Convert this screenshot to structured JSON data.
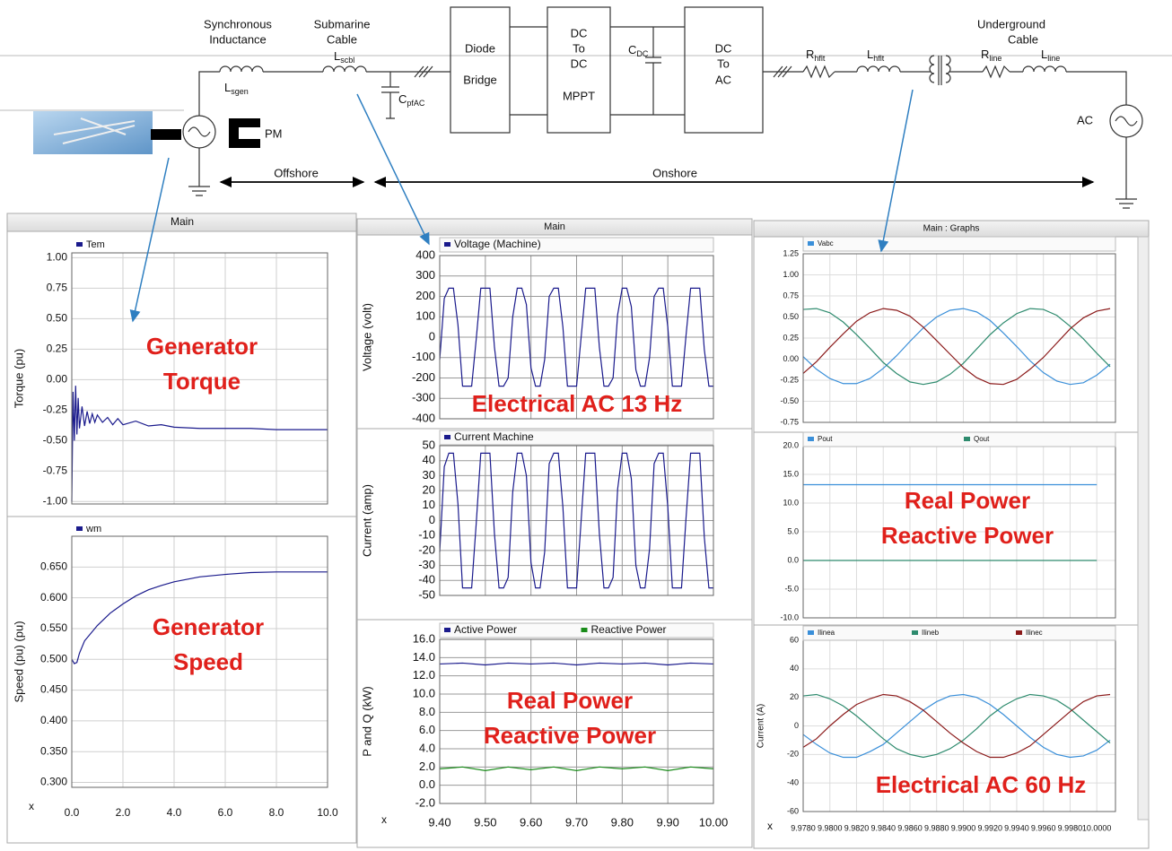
{
  "diagram": {
    "synchronous_inductance": [
      "Synchronous",
      "Inductance"
    ],
    "submarine_cable": [
      "Submarine",
      "Cable"
    ],
    "underground_cable": [
      "Underground",
      "Cable"
    ],
    "l_sgen": {
      "symbol": "L",
      "sub": "sgen"
    },
    "l_scbl": {
      "symbol": "L",
      "sub": "scbl"
    },
    "c_pfac": {
      "symbol": "C",
      "sub": "pfAC"
    },
    "diode_bridge": [
      "Diode",
      "Bridge"
    ],
    "dc_dc": [
      "DC",
      "To",
      "DC",
      "MPPT"
    ],
    "c_dc": {
      "symbol": "C",
      "sub": "DC"
    },
    "dc_ac": [
      "DC",
      "To",
      "AC"
    ],
    "r_hflt": {
      "symbol": "R",
      "sub": "hflt"
    },
    "l_hflt": {
      "symbol": "L",
      "sub": "hflt"
    },
    "r_line": {
      "symbol": "R",
      "sub": "line"
    },
    "l_line": {
      "symbol": "L",
      "sub": "line"
    },
    "ac": "AC",
    "pm": "PM",
    "offshore": "Offshore",
    "onshore": "Onshore"
  },
  "panels": [
    "Main",
    "Main",
    "Main : Graphs"
  ],
  "chart_data": [
    {
      "type": "line",
      "ylabel": "Torque (pu)",
      "annotation": [
        "Generator",
        "Torque"
      ],
      "xlim": [
        0,
        10
      ],
      "ylim": [
        -1.02,
        1.04
      ],
      "yticks": [
        {
          "value": 1,
          "label": "1.00"
        },
        {
          "value": 0.75,
          "label": "0.75"
        },
        {
          "value": 0.5,
          "label": "0.50"
        },
        {
          "value": 0.25,
          "label": "0.25"
        },
        {
          "value": 0,
          "label": "0.00"
        },
        {
          "value": -0.25,
          "label": "-0.25"
        },
        {
          "value": -0.5,
          "label": "-0.50"
        },
        {
          "value": -0.75,
          "label": "-0.75"
        },
        {
          "value": -1,
          "label": "-1.00"
        }
      ],
      "x": [
        0,
        0.05,
        0.1,
        0.15,
        0.2,
        0.25,
        0.3,
        0.4,
        0.5,
        0.6,
        0.7,
        0.8,
        0.9,
        1.0,
        1.2,
        1.4,
        1.6,
        1.8,
        2.0,
        2.5,
        3.0,
        3.5,
        4.0,
        5.0,
        6.0,
        7.0,
        8.0,
        9.0,
        10.0
      ],
      "series": [
        {
          "name": "Tem",
          "color": "#1a1a8c",
          "values": [
            -1.0,
            -0.1,
            -0.5,
            -0.05,
            -0.45,
            -0.15,
            -0.4,
            -0.22,
            -0.38,
            -0.26,
            -0.36,
            -0.28,
            -0.35,
            -0.29,
            -0.35,
            -0.31,
            -0.37,
            -0.32,
            -0.37,
            -0.34,
            -0.38,
            -0.37,
            -0.39,
            -0.4,
            -0.4,
            -0.4,
            -0.41,
            -0.41,
            -0.41
          ]
        }
      ]
    },
    {
      "type": "line",
      "ylabel": "Speed (pu) (pu)",
      "xlabel": "x",
      "annotation": [
        "Generator",
        "Speed"
      ],
      "xlim": [
        0,
        10
      ],
      "ylim": [
        0.292,
        0.7
      ],
      "yticks": [
        {
          "value": 0.65,
          "label": "0.650"
        },
        {
          "value": 0.6,
          "label": "0.600"
        },
        {
          "value": 0.55,
          "label": "0.550"
        },
        {
          "value": 0.5,
          "label": "0.500"
        },
        {
          "value": 0.45,
          "label": "0.450"
        },
        {
          "value": 0.4,
          "label": "0.400"
        },
        {
          "value": 0.35,
          "label": "0.350"
        },
        {
          "value": 0.3,
          "label": "0.300"
        }
      ],
      "xticks": [
        {
          "value": 0,
          "label": "0.0"
        },
        {
          "value": 2,
          "label": "2.0"
        },
        {
          "value": 4,
          "label": "4.0"
        },
        {
          "value": 6,
          "label": "6.0"
        },
        {
          "value": 8,
          "label": "8.0"
        },
        {
          "value": 10,
          "label": "10.0"
        }
      ],
      "x": [
        0,
        0.1,
        0.2,
        0.3,
        0.5,
        1,
        1.5,
        2,
        2.5,
        3,
        3.5,
        4,
        5,
        6,
        7,
        8,
        9,
        10
      ],
      "series": [
        {
          "name": "wm",
          "color": "#1a1a8c",
          "values": [
            0.5,
            0.493,
            0.495,
            0.51,
            0.53,
            0.555,
            0.575,
            0.59,
            0.603,
            0.613,
            0.62,
            0.626,
            0.634,
            0.638,
            0.641,
            0.642,
            0.642,
            0.642
          ]
        }
      ]
    },
    {
      "type": "line",
      "ylabel": "Voltage (volt)",
      "annotation": [
        "Electrical AC 13 Hz"
      ],
      "xlim": [
        9.4,
        10
      ],
      "ylim": [
        -400,
        400
      ],
      "yticks": [
        400,
        300,
        200,
        100,
        0,
        -100,
        -200,
        -300,
        -400
      ],
      "x": [
        9.4,
        9.41,
        9.42,
        9.43,
        9.44,
        9.45,
        9.46,
        9.47,
        9.48,
        9.49,
        9.5,
        9.51,
        9.52,
        9.53,
        9.54,
        9.55,
        9.56,
        9.57,
        9.58,
        9.59,
        9.6,
        9.61,
        9.62,
        9.63,
        9.64,
        9.65,
        9.66,
        9.67,
        9.68,
        9.69,
        9.7,
        9.71,
        9.72,
        9.73,
        9.74,
        9.75,
        9.76,
        9.77,
        9.78,
        9.79,
        9.8,
        9.81,
        9.82,
        9.83,
        9.84,
        9.85,
        9.86,
        9.87,
        9.88,
        9.89,
        9.9,
        9.91,
        9.92,
        9.93,
        9.94,
        9.95,
        9.96,
        9.97,
        9.98,
        9.99,
        10.0
      ],
      "series": [
        {
          "name": "Voltage (Machine)",
          "color": "#1a1a8c",
          "values": [
            -110,
            190,
            240,
            240,
            60,
            -240,
            -240,
            -240,
            -10,
            240,
            240,
            240,
            -50,
            -240,
            -240,
            -200,
            100,
            240,
            240,
            160,
            -150,
            -240,
            -240,
            -110,
            200,
            240,
            240,
            50,
            -240,
            -240,
            -240,
            0,
            240,
            240,
            240,
            -50,
            -240,
            -240,
            -200,
            110,
            240,
            240,
            150,
            -160,
            -240,
            -240,
            -100,
            200,
            240,
            240,
            50,
            -240,
            -240,
            -240,
            10,
            240,
            240,
            240,
            -60,
            -240,
            -240
          ]
        }
      ]
    },
    {
      "type": "line",
      "ylabel": "Current (amp)",
      "xlim": [
        9.4,
        10
      ],
      "ylim": [
        -50,
        50
      ],
      "yticks": [
        50,
        40,
        30,
        20,
        10,
        0,
        -10,
        -20,
        -30,
        -40,
        -50
      ],
      "x": [
        9.4,
        9.41,
        9.42,
        9.43,
        9.44,
        9.45,
        9.46,
        9.47,
        9.48,
        9.49,
        9.5,
        9.51,
        9.52,
        9.53,
        9.54,
        9.55,
        9.56,
        9.57,
        9.58,
        9.59,
        9.6,
        9.61,
        9.62,
        9.63,
        9.64,
        9.65,
        9.66,
        9.67,
        9.68,
        9.69,
        9.7,
        9.71,
        9.72,
        9.73,
        9.74,
        9.75,
        9.76,
        9.77,
        9.78,
        9.79,
        9.8,
        9.81,
        9.82,
        9.83,
        9.84,
        9.85,
        9.86,
        9.87,
        9.88,
        9.89,
        9.9,
        9.91,
        9.92,
        9.93,
        9.94,
        9.95,
        9.96,
        9.97,
        9.98,
        9.99,
        10.0
      ],
      "series": [
        {
          "name": "Current Machine",
          "color": "#1a1a8c",
          "values": [
            -21,
            36,
            45,
            45,
            11,
            -45,
            -45,
            -45,
            -2,
            45,
            45,
            45,
            -9,
            -45,
            -45,
            -38,
            19,
            45,
            45,
            30,
            -28,
            -45,
            -45,
            -21,
            38,
            45,
            45,
            9,
            -45,
            -45,
            -45,
            0,
            45,
            45,
            45,
            -9,
            -45,
            -45,
            -38,
            21,
            45,
            45,
            28,
            -30,
            -45,
            -45,
            -19,
            38,
            45,
            45,
            9,
            -45,
            -45,
            -45,
            2,
            45,
            45,
            45,
            -11,
            -45,
            -45
          ]
        }
      ]
    },
    {
      "type": "line",
      "ylabel": "P and Q (kW)",
      "xlabel": "x",
      "annotation": [
        "Real Power",
        "Reactive Power"
      ],
      "xlim": [
        9.4,
        10
      ],
      "ylim": [
        -2,
        16
      ],
      "yticks": [
        {
          "value": 16,
          "label": "16.0"
        },
        {
          "value": 14,
          "label": "14.0"
        },
        {
          "value": 12,
          "label": "12.0"
        },
        {
          "value": 10,
          "label": "10.0"
        },
        {
          "value": 8,
          "label": "8.0"
        },
        {
          "value": 6,
          "label": "6.0"
        },
        {
          "value": 4,
          "label": "4.0"
        },
        {
          "value": 2,
          "label": "2.0"
        },
        {
          "value": 0,
          "label": "0.0"
        },
        {
          "value": -2,
          "label": "-2.0"
        }
      ],
      "xticks": [
        {
          "value": 9.4,
          "label": "9.40"
        },
        {
          "value": 9.5,
          "label": "9.50"
        },
        {
          "value": 9.6,
          "label": "9.60"
        },
        {
          "value": 9.7,
          "label": "9.70"
        },
        {
          "value": 9.8,
          "label": "9.80"
        },
        {
          "value": 9.9,
          "label": "9.90"
        },
        {
          "value": 10,
          "label": "10.00"
        }
      ],
      "x": [
        9.4,
        9.45,
        9.5,
        9.55,
        9.6,
        9.65,
        9.7,
        9.75,
        9.8,
        9.85,
        9.9,
        9.95,
        10.0
      ],
      "series": [
        {
          "name": "Active Power",
          "color": "#1a1a8c",
          "values": [
            13.3,
            13.4,
            13.2,
            13.4,
            13.3,
            13.4,
            13.2,
            13.4,
            13.3,
            13.4,
            13.2,
            13.4,
            13.3
          ]
        },
        {
          "name": "Reactive Power",
          "color": "#1a8c1a",
          "values": [
            1.8,
            2.0,
            1.6,
            2.0,
            1.7,
            2.0,
            1.6,
            2.0,
            1.8,
            2.0,
            1.6,
            2.0,
            1.8
          ]
        }
      ]
    },
    {
      "type": "line",
      "xlim": [
        9.978,
        10.0014
      ],
      "ylim": [
        -0.75,
        1.25
      ],
      "yticks": [
        {
          "value": 1.25,
          "label": "1.25"
        },
        {
          "value": 1,
          "label": "1.00"
        },
        {
          "value": 0.75,
          "label": "0.75"
        },
        {
          "value": 0.5,
          "label": "0.50"
        },
        {
          "value": 0.25,
          "label": "0.25"
        },
        {
          "value": 0,
          "label": "0.00"
        },
        {
          "value": -0.25,
          "label": "-0.25"
        },
        {
          "value": -0.5,
          "label": "-0.50"
        },
        {
          "value": -0.75,
          "label": "-0.75"
        }
      ],
      "x": [
        9.978,
        9.979,
        9.98,
        9.981,
        9.982,
        9.983,
        9.984,
        9.985,
        9.986,
        9.987,
        9.988,
        9.989,
        9.99,
        9.991,
        9.992,
        9.993,
        9.994,
        9.995,
        9.996,
        9.997,
        9.998,
        9.999,
        10.0,
        10.001
      ],
      "series": [
        {
          "name": "Vabc",
          "color": "#3a8fd9",
          "values": [
            0.03,
            -0.12,
            -0.23,
            -0.29,
            -0.29,
            -0.23,
            -0.11,
            0.04,
            0.21,
            0.37,
            0.5,
            0.58,
            0.6,
            0.56,
            0.46,
            0.31,
            0.15,
            -0.02,
            -0.16,
            -0.26,
            -0.3,
            -0.28,
            -0.19,
            -0.06
          ]
        },
        {
          "color": "#2e8b6e",
          "values": [
            0.59,
            0.6,
            0.55,
            0.44,
            0.29,
            0.13,
            -0.04,
            -0.17,
            -0.27,
            -0.3,
            -0.27,
            -0.18,
            -0.05,
            0.12,
            0.29,
            0.43,
            0.54,
            0.6,
            0.59,
            0.52,
            0.39,
            0.24,
            0.07,
            -0.09
          ]
        },
        {
          "color": "#8b1a1a",
          "values": [
            -0.17,
            -0.03,
            0.14,
            0.3,
            0.45,
            0.55,
            0.6,
            0.58,
            0.51,
            0.38,
            0.22,
            0.06,
            -0.1,
            -0.22,
            -0.29,
            -0.3,
            -0.24,
            -0.12,
            0.02,
            0.19,
            0.36,
            0.49,
            0.57,
            0.6
          ]
        }
      ]
    },
    {
      "type": "line",
      "annotation": [
        "Real Power",
        "Reactive Power"
      ],
      "xlim": [
        9.978,
        10.0014
      ],
      "ylim": [
        -10,
        20
      ],
      "yticks": [
        {
          "value": 20,
          "label": "20.0"
        },
        {
          "value": 15,
          "label": "15.0"
        },
        {
          "value": 10,
          "label": "10.0"
        },
        {
          "value": 5,
          "label": "5.0"
        },
        {
          "value": 0,
          "label": "0.0"
        },
        {
          "value": -5,
          "label": "-5.0"
        },
        {
          "value": -10,
          "label": "-10.0"
        }
      ],
      "x": [
        9.978,
        10.0
      ],
      "series": [
        {
          "name": "Pout",
          "color": "#3a8fd9",
          "values": [
            13.2,
            13.2
          ]
        },
        {
          "name": "Qout",
          "color": "#2e8b6e",
          "values": [
            0,
            0
          ]
        }
      ]
    },
    {
      "type": "line",
      "ylabel": "Current (A)",
      "xlabel": "x",
      "annotation": [
        "Electrical AC 60 Hz"
      ],
      "xlim": [
        9.978,
        10.0014
      ],
      "ylim": [
        -60,
        60
      ],
      "yticks": [
        60,
        40,
        20,
        0,
        -20,
        -40,
        -60
      ],
      "xticks": [
        {
          "value": 9.978,
          "label": "9.9780"
        },
        {
          "value": 9.98,
          "label": "9.9800"
        },
        {
          "value": 9.982,
          "label": "9.9820"
        },
        {
          "value": 9.984,
          "label": "9.9840"
        },
        {
          "value": 9.986,
          "label": "9.9860"
        },
        {
          "value": 9.988,
          "label": "9.9880"
        },
        {
          "value": 9.99,
          "label": "9.9900"
        },
        {
          "value": 9.992,
          "label": "9.9920"
        },
        {
          "value": 9.994,
          "label": "9.9940"
        },
        {
          "value": 9.996,
          "label": "9.9960"
        },
        {
          "value": 9.998,
          "label": "9.9980"
        },
        {
          "value": 10,
          "label": "10.0000"
        }
      ],
      "x": [
        9.978,
        9.979,
        9.98,
        9.981,
        9.982,
        9.983,
        9.984,
        9.985,
        9.986,
        9.987,
        9.988,
        9.989,
        9.99,
        9.991,
        9.992,
        9.993,
        9.994,
        9.995,
        9.996,
        9.997,
        9.998,
        9.999,
        10.0,
        10.001
      ],
      "series": [
        {
          "name": "Ilinea",
          "color": "#3a8fd9",
          "values": [
            -6,
            -13,
            -19,
            -22,
            -22,
            -18,
            -13,
            -5,
            3,
            11,
            17,
            21,
            22,
            20,
            15,
            8,
            0,
            -8,
            -15,
            -20,
            -22,
            -21,
            -17,
            -10
          ]
        },
        {
          "name": "Ilineb",
          "color": "#2e8b6e",
          "values": [
            21,
            22,
            19,
            14,
            7,
            -1,
            -9,
            -16,
            -20,
            -22,
            -20,
            -16,
            -10,
            -2,
            7,
            14,
            19,
            22,
            21,
            18,
            12,
            4,
            -4,
            -12
          ]
        },
        {
          "name": "Ilinec",
          "color": "#8b1a1a",
          "values": [
            -15,
            -9,
            0,
            8,
            15,
            19,
            22,
            21,
            17,
            11,
            3,
            -5,
            -12,
            -18,
            -22,
            -22,
            -19,
            -14,
            -6,
            2,
            10,
            17,
            21,
            22
          ]
        }
      ]
    }
  ]
}
